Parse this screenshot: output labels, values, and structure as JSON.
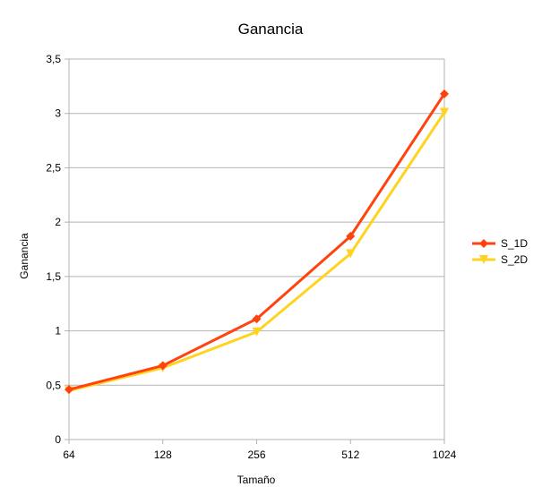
{
  "chart_data": {
    "type": "line",
    "title": "Ganancia",
    "xlabel": "Tamaño",
    "ylabel": "Ganancia",
    "categories": [
      "64",
      "128",
      "256",
      "512",
      "1024"
    ],
    "ylim": [
      0,
      3.5
    ],
    "yticks": [
      "0",
      "0,5",
      "1",
      "1,5",
      "2",
      "2,5",
      "3",
      "3,5"
    ],
    "ytick_values": [
      0,
      0.5,
      1,
      1.5,
      2,
      2.5,
      3,
      3.5
    ],
    "grid": true,
    "legend_position": "right",
    "series": [
      {
        "name": "S_1D",
        "values": [
          0.46,
          0.68,
          1.11,
          1.87,
          3.18
        ],
        "color": "#ff420e",
        "marker": "diamond"
      },
      {
        "name": "S_2D",
        "values": [
          0.45,
          0.66,
          0.99,
          1.71,
          3.01
        ],
        "color": "#ffd320",
        "marker": "triangle-down"
      }
    ]
  }
}
